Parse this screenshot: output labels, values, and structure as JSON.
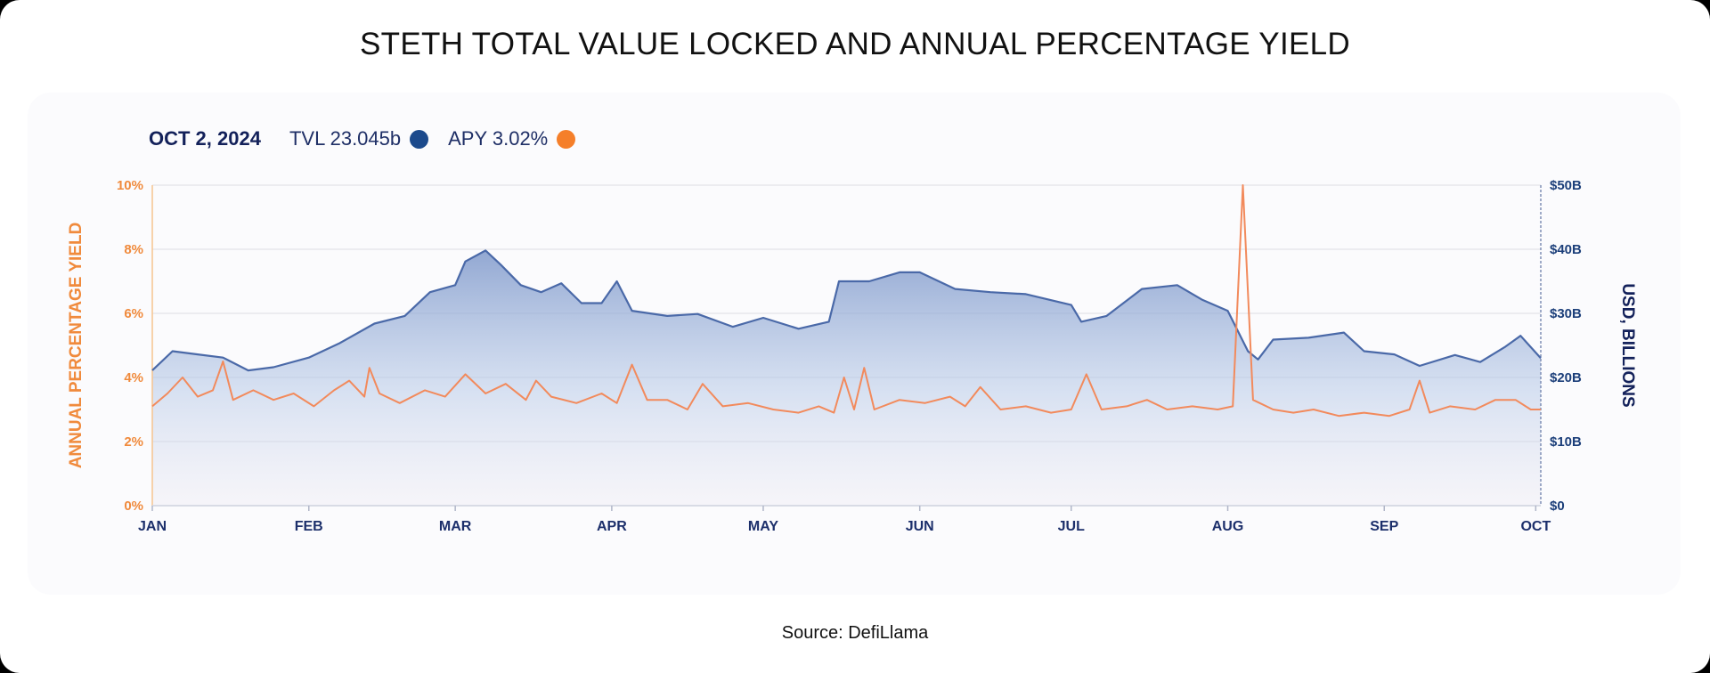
{
  "title": "STETH TOTAL VALUE LOCKED AND ANNUAL PERCENTAGE YIELD",
  "legend": {
    "date": "OCT 2, 2024",
    "tvl": "TVL 23.045b",
    "apy": "APY 3.02%"
  },
  "source": "Source: DefiLlama",
  "colors": {
    "tvl": "#1c4a8c",
    "apy": "#f57f2a",
    "tvl_line": "#4a69a8",
    "apy_line": "#f28a5c"
  },
  "chart_data": {
    "type": "line",
    "title": "STETH TOTAL VALUE LOCKED AND ANNUAL PERCENTAGE YIELD",
    "xlabel": "",
    "ylabel_left": "ANNUAL PERCENTAGE YIELD",
    "ylabel_right": "USD, BILLIONS",
    "x_range": [
      "2024-01-01",
      "2024-10-02"
    ],
    "x_ticks": [
      "JAN",
      "FEB",
      "MAR",
      "APR",
      "MAY",
      "JUN",
      "JUL",
      "AUG",
      "SEP",
      "OCT"
    ],
    "y_left": {
      "range": [
        0,
        10
      ],
      "ticks": [
        "0%",
        "2%",
        "4%",
        "6%",
        "8%",
        "10%"
      ]
    },
    "y_right": {
      "range": [
        0,
        50
      ],
      "ticks": [
        "$0",
        "$10B",
        "$20B",
        "$30B",
        "$40B",
        "$50B"
      ]
    },
    "grid": true,
    "series": [
      {
        "name": "TVL",
        "axis": "right",
        "fill": "area",
        "points": [
          [
            "2024-01-01",
            21.1
          ],
          [
            "2024-01-05",
            24.1
          ],
          [
            "2024-01-10",
            23.6
          ],
          [
            "2024-01-15",
            23.1
          ],
          [
            "2024-01-20",
            21.1
          ],
          [
            "2024-01-25",
            21.6
          ],
          [
            "2024-02-01",
            23.1
          ],
          [
            "2024-02-07",
            25.3
          ],
          [
            "2024-02-14",
            28.4
          ],
          [
            "2024-02-20",
            29.6
          ],
          [
            "2024-02-25",
            33.3
          ],
          [
            "2024-03-01",
            34.4
          ],
          [
            "2024-03-03",
            38.1
          ],
          [
            "2024-03-07",
            39.8
          ],
          [
            "2024-03-10",
            37.6
          ],
          [
            "2024-03-14",
            34.4
          ],
          [
            "2024-03-18",
            33.3
          ],
          [
            "2024-03-22",
            34.7
          ],
          [
            "2024-03-26",
            31.6
          ],
          [
            "2024-03-30",
            31.6
          ],
          [
            "2024-04-02",
            35.0
          ],
          [
            "2024-04-05",
            30.4
          ],
          [
            "2024-04-12",
            29.6
          ],
          [
            "2024-04-18",
            29.9
          ],
          [
            "2024-04-25",
            27.9
          ],
          [
            "2024-05-01",
            29.3
          ],
          [
            "2024-05-08",
            27.6
          ],
          [
            "2024-05-14",
            28.7
          ],
          [
            "2024-05-16",
            35.0
          ],
          [
            "2024-05-22",
            35.0
          ],
          [
            "2024-05-28",
            36.4
          ],
          [
            "2024-06-01",
            36.4
          ],
          [
            "2024-06-08",
            33.8
          ],
          [
            "2024-06-15",
            33.3
          ],
          [
            "2024-06-22",
            33.0
          ],
          [
            "2024-07-01",
            31.3
          ],
          [
            "2024-07-03",
            28.7
          ],
          [
            "2024-07-08",
            29.6
          ],
          [
            "2024-07-15",
            33.8
          ],
          [
            "2024-07-22",
            34.4
          ],
          [
            "2024-07-27",
            32.1
          ],
          [
            "2024-08-01",
            30.4
          ],
          [
            "2024-08-05",
            24.1
          ],
          [
            "2024-08-07",
            22.8
          ],
          [
            "2024-08-10",
            25.9
          ],
          [
            "2024-08-17",
            26.2
          ],
          [
            "2024-08-24",
            27.0
          ],
          [
            "2024-08-28",
            24.1
          ],
          [
            "2024-09-03",
            23.6
          ],
          [
            "2024-09-08",
            21.8
          ],
          [
            "2024-09-15",
            23.5
          ],
          [
            "2024-09-20",
            22.4
          ],
          [
            "2024-09-25",
            24.8
          ],
          [
            "2024-09-28",
            26.5
          ],
          [
            "2024-10-02",
            23.0
          ]
        ]
      },
      {
        "name": "APY",
        "axis": "left",
        "points": [
          [
            "2024-01-01",
            3.1
          ],
          [
            "2024-01-04",
            3.5
          ],
          [
            "2024-01-07",
            4.0
          ],
          [
            "2024-01-10",
            3.4
          ],
          [
            "2024-01-13",
            3.6
          ],
          [
            "2024-01-15",
            4.5
          ],
          [
            "2024-01-17",
            3.3
          ],
          [
            "2024-01-21",
            3.6
          ],
          [
            "2024-01-25",
            3.3
          ],
          [
            "2024-01-29",
            3.5
          ],
          [
            "2024-02-02",
            3.1
          ],
          [
            "2024-02-06",
            3.6
          ],
          [
            "2024-02-09",
            3.9
          ],
          [
            "2024-02-12",
            3.4
          ],
          [
            "2024-02-13",
            4.3
          ],
          [
            "2024-02-15",
            3.5
          ],
          [
            "2024-02-19",
            3.2
          ],
          [
            "2024-02-24",
            3.6
          ],
          [
            "2024-02-28",
            3.4
          ],
          [
            "2024-03-03",
            4.1
          ],
          [
            "2024-03-07",
            3.5
          ],
          [
            "2024-03-11",
            3.8
          ],
          [
            "2024-03-15",
            3.3
          ],
          [
            "2024-03-17",
            3.9
          ],
          [
            "2024-03-20",
            3.4
          ],
          [
            "2024-03-25",
            3.2
          ],
          [
            "2024-03-30",
            3.5
          ],
          [
            "2024-04-02",
            3.2
          ],
          [
            "2024-04-05",
            4.4
          ],
          [
            "2024-04-08",
            3.3
          ],
          [
            "2024-04-12",
            3.3
          ],
          [
            "2024-04-16",
            3.0
          ],
          [
            "2024-04-19",
            3.8
          ],
          [
            "2024-04-23",
            3.1
          ],
          [
            "2024-04-28",
            3.2
          ],
          [
            "2024-05-03",
            3.0
          ],
          [
            "2024-05-08",
            2.9
          ],
          [
            "2024-05-12",
            3.1
          ],
          [
            "2024-05-15",
            2.9
          ],
          [
            "2024-05-17",
            4.0
          ],
          [
            "2024-05-19",
            3.0
          ],
          [
            "2024-05-21",
            4.3
          ],
          [
            "2024-05-23",
            3.0
          ],
          [
            "2024-05-28",
            3.3
          ],
          [
            "2024-06-02",
            3.2
          ],
          [
            "2024-06-07",
            3.4
          ],
          [
            "2024-06-10",
            3.1
          ],
          [
            "2024-06-13",
            3.7
          ],
          [
            "2024-06-17",
            3.0
          ],
          [
            "2024-06-22",
            3.1
          ],
          [
            "2024-06-27",
            2.9
          ],
          [
            "2024-07-01",
            3.0
          ],
          [
            "2024-07-04",
            4.1
          ],
          [
            "2024-07-07",
            3.0
          ],
          [
            "2024-07-12",
            3.1
          ],
          [
            "2024-07-16",
            3.3
          ],
          [
            "2024-07-20",
            3.0
          ],
          [
            "2024-07-25",
            3.1
          ],
          [
            "2024-07-30",
            3.0
          ],
          [
            "2024-08-02",
            3.1
          ],
          [
            "2024-08-04",
            10.0
          ],
          [
            "2024-08-06",
            3.3
          ],
          [
            "2024-08-10",
            3.0
          ],
          [
            "2024-08-14",
            2.9
          ],
          [
            "2024-08-18",
            3.0
          ],
          [
            "2024-08-23",
            2.8
          ],
          [
            "2024-08-28",
            2.9
          ],
          [
            "2024-09-02",
            2.8
          ],
          [
            "2024-09-06",
            3.0
          ],
          [
            "2024-09-08",
            3.9
          ],
          [
            "2024-09-10",
            2.9
          ],
          [
            "2024-09-14",
            3.1
          ],
          [
            "2024-09-19",
            3.0
          ],
          [
            "2024-09-23",
            3.3
          ],
          [
            "2024-09-27",
            3.3
          ],
          [
            "2024-09-30",
            3.0
          ],
          [
            "2024-10-02",
            3.0
          ]
        ]
      }
    ]
  }
}
